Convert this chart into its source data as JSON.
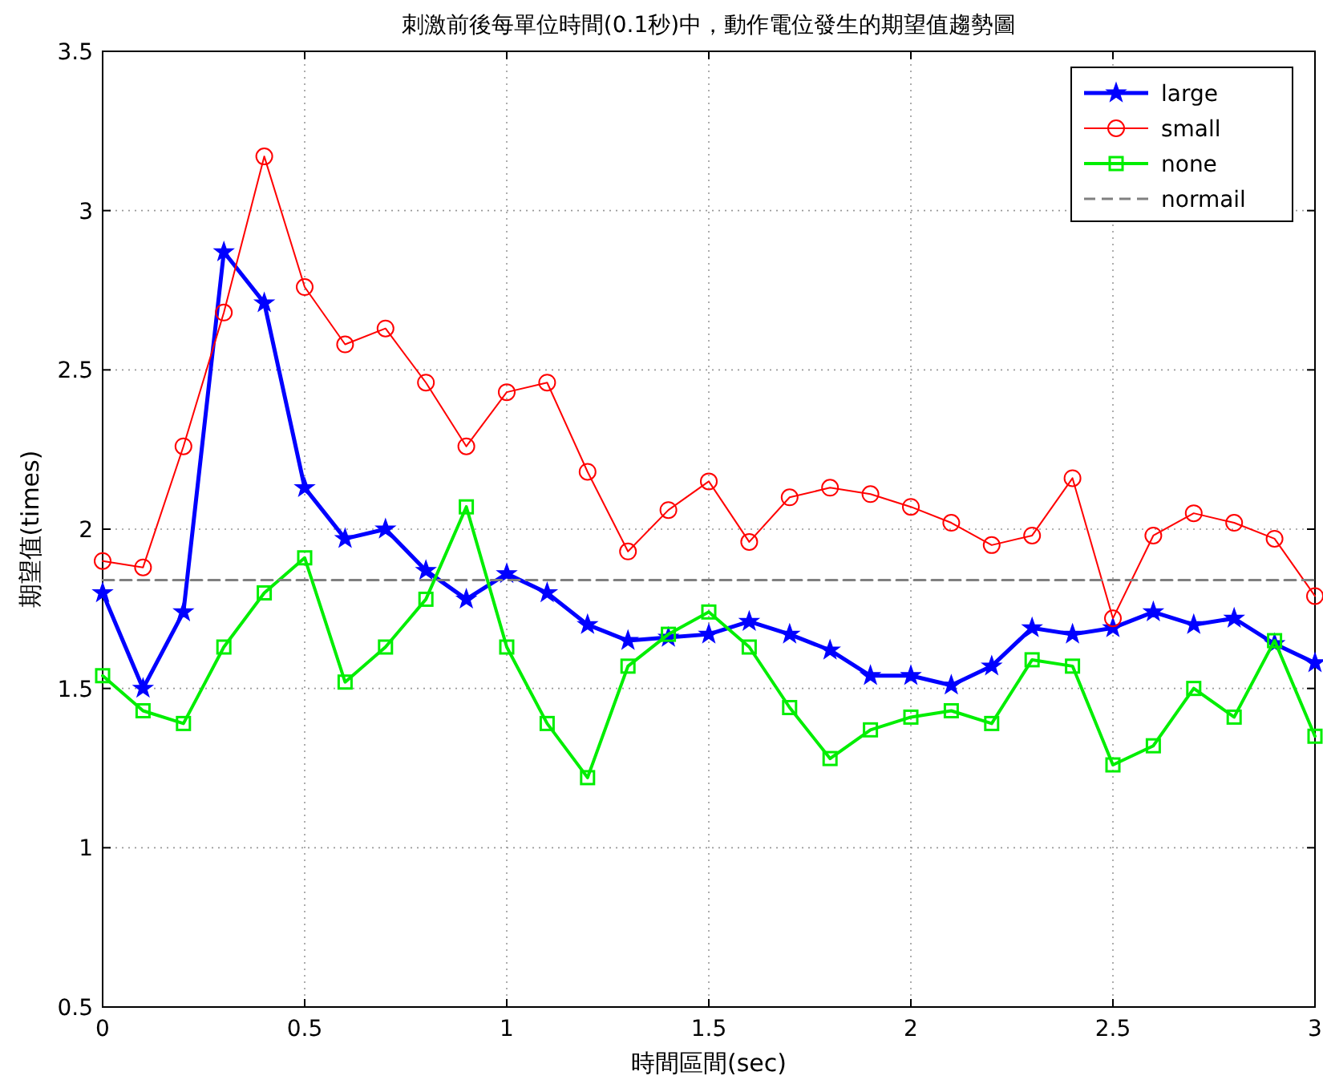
{
  "chart_data": {
    "type": "line",
    "title": "刺激前後每單位時間(0.1秒)中，動作電位發生的期望值趨勢圖",
    "xlabel": "時間區間(sec)",
    "ylabel": "期望值(times)",
    "x": [
      0,
      0.1,
      0.2,
      0.3,
      0.4,
      0.5,
      0.6,
      0.7,
      0.8,
      0.9,
      1,
      1.1,
      1.2,
      1.3,
      1.4,
      1.5,
      1.6,
      1.7,
      1.8,
      1.9,
      2,
      2.1,
      2.2,
      2.3,
      2.4,
      2.5,
      2.6,
      2.7,
      2.8,
      2.9,
      3
    ],
    "series": [
      {
        "name": "large",
        "color": "#0000ff",
        "marker": "star",
        "line_style": "solid",
        "values": [
          1.8,
          1.5,
          1.74,
          2.87,
          2.71,
          2.13,
          1.97,
          2.0,
          1.87,
          1.78,
          1.86,
          1.8,
          1.7,
          1.65,
          1.66,
          1.67,
          1.71,
          1.67,
          1.62,
          1.54,
          1.54,
          1.51,
          1.57,
          1.69,
          1.67,
          1.69,
          1.74,
          1.7,
          1.72,
          1.64,
          1.58
        ]
      },
      {
        "name": "small",
        "color": "#ff0000",
        "marker": "circle",
        "line_style": "solid",
        "values": [
          1.9,
          1.88,
          2.26,
          2.68,
          3.17,
          2.76,
          2.58,
          2.63,
          2.46,
          2.26,
          2.43,
          2.46,
          2.18,
          1.93,
          2.06,
          2.15,
          1.96,
          2.1,
          2.13,
          2.11,
          2.07,
          2.02,
          1.95,
          1.98,
          2.16,
          1.72,
          1.98,
          2.05,
          2.02,
          1.97,
          1.79
        ]
      },
      {
        "name": "none",
        "color": "#00ee00",
        "marker": "square",
        "line_style": "solid",
        "values": [
          1.54,
          1.43,
          1.39,
          1.63,
          1.8,
          1.91,
          1.52,
          1.63,
          1.78,
          2.07,
          1.63,
          1.39,
          1.22,
          1.57,
          1.67,
          1.74,
          1.63,
          1.44,
          1.28,
          1.37,
          1.41,
          1.43,
          1.39,
          1.59,
          1.57,
          1.26,
          1.32,
          1.5,
          1.41,
          1.65,
          1.35
        ]
      },
      {
        "name": "normail",
        "color": "#808080",
        "marker": "none",
        "line_style": "dashed",
        "x": [
          0,
          3
        ],
        "values": [
          1.84,
          1.84
        ]
      }
    ],
    "xlim": [
      0,
      3
    ],
    "ylim": [
      0.5,
      3.5
    ],
    "xticks": [
      0,
      0.5,
      1,
      1.5,
      2,
      2.5,
      3
    ],
    "yticks": [
      0.5,
      1,
      1.5,
      2,
      2.5,
      3,
      3.5
    ],
    "grid": true,
    "legend": "top right"
  }
}
